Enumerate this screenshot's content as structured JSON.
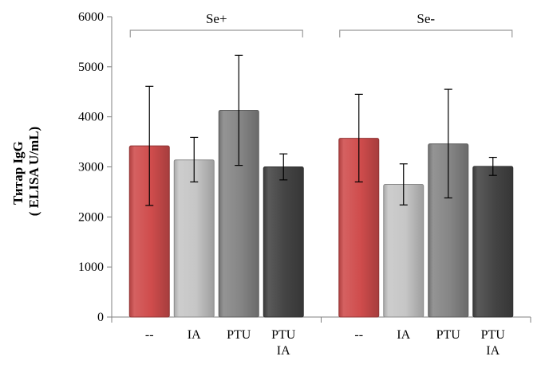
{
  "chart_data": {
    "type": "bar",
    "title": "",
    "ylabel_lines": [
      "Титар IgG",
      "( ELISA U/mL)"
    ],
    "ylim": [
      0,
      6000
    ],
    "yticks": [
      0,
      1000,
      2000,
      3000,
      4000,
      5000,
      6000
    ],
    "grid": false,
    "legend": "none",
    "groups": [
      {
        "name": "Se+",
        "bars": [
          {
            "label": [
              "--"
            ],
            "value": 3420,
            "err_low": 2230,
            "err_high": 4610,
            "color": "#cf4c4c"
          },
          {
            "label": [
              "IA"
            ],
            "value": 3140,
            "err_low": 2700,
            "err_high": 3590,
            "color": "#c6c6c6"
          },
          {
            "label": [
              "PTU"
            ],
            "value": 4130,
            "err_low": 3030,
            "err_high": 5230,
            "color": "#858585"
          },
          {
            "label": [
              "PTU",
              "IA"
            ],
            "value": 3000,
            "err_low": 2740,
            "err_high": 3260,
            "color": "#444444"
          }
        ]
      },
      {
        "name": "Se-",
        "bars": [
          {
            "label": [
              "--"
            ],
            "value": 3570,
            "err_low": 2700,
            "err_high": 4450,
            "color": "#cf4c4c"
          },
          {
            "label": [
              "IA"
            ],
            "value": 2650,
            "err_low": 2240,
            "err_high": 3060,
            "color": "#c6c6c6"
          },
          {
            "label": [
              "PTU"
            ],
            "value": 3460,
            "err_low": 2380,
            "err_high": 4550,
            "color": "#858585"
          },
          {
            "label": [
              "PTU",
              "IA"
            ],
            "value": 3010,
            "err_low": 2830,
            "err_high": 3190,
            "color": "#444444"
          }
        ]
      }
    ]
  }
}
